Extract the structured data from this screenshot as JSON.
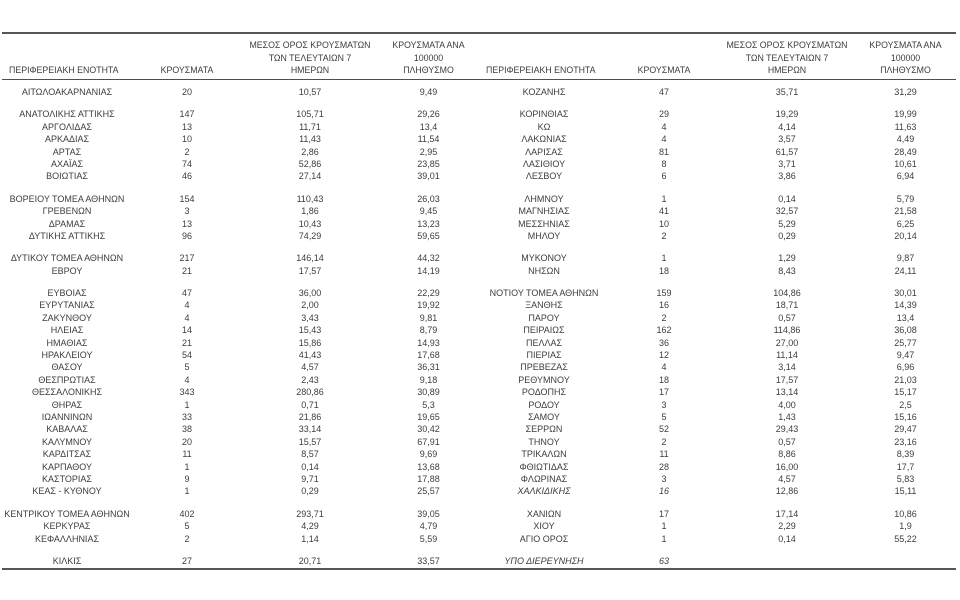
{
  "colors": {
    "text": "#3d3d3d",
    "rule": "#565656",
    "background": "#ffffff"
  },
  "header": {
    "col_region": "ΠΕΡΙΦΕΡΕΙΑΚΗ ΕΝΟΤΗΤΑ",
    "col_cases": "ΚΡΟΥΣΜΑΤΑ",
    "col_avg7_line1": "ΜΕΣΟΣ ΟΡΟΣ ΚΡΟΥΣΜΑΤΩΝ",
    "col_avg7_line2": "ΤΩΝ ΤΕΛΕΥΤΑΙΩΝ 7",
    "col_avg7_line3": "ΗΜΕΡΩΝ",
    "col_per100k_line1": "ΚΡΟΥΣΜΑΤΑ ΑΝΑ 100000",
    "col_per100k_line2": "ΠΛΗΘΥΣΜΟ"
  },
  "left_table": {
    "groups": [
      [
        {
          "region": "ΑΙΤΩΛΟΑΚΑΡΝΑΝΙΑΣ",
          "cases": "20",
          "avg7": "10,57",
          "per100k": "9,49"
        }
      ],
      [
        {
          "region": "ΑΝΑΤΟΛΙΚΗΣ ΑΤΤΙΚΗΣ",
          "cases": "147",
          "avg7": "105,71",
          "per100k": "29,26"
        },
        {
          "region": "ΑΡΓΟΛΙΔΑΣ",
          "cases": "13",
          "avg7": "11,71",
          "per100k": "13,4"
        },
        {
          "region": "ΑΡΚΑΔΙΑΣ",
          "cases": "10",
          "avg7": "11,43",
          "per100k": "11,54"
        },
        {
          "region": "ΑΡΤΑΣ",
          "cases": "2",
          "avg7": "2,86",
          "per100k": "2,95"
        },
        {
          "region": "ΑΧΑΪΑΣ",
          "cases": "74",
          "avg7": "52,86",
          "per100k": "23,85"
        },
        {
          "region": "ΒΟΙΩΤΙΑΣ",
          "cases": "46",
          "avg7": "27,14",
          "per100k": "39,01"
        }
      ],
      [
        {
          "region": "ΒΟΡΕΙΟΥ ΤΟΜΕΑ ΑΘΗΝΩΝ",
          "cases": "154",
          "avg7": "110,43",
          "per100k": "26,03"
        },
        {
          "region": "ΓΡΕΒΕΝΩΝ",
          "cases": "3",
          "avg7": "1,86",
          "per100k": "9,45"
        },
        {
          "region": "ΔΡΑΜΑΣ",
          "cases": "13",
          "avg7": "10,43",
          "per100k": "13,23"
        },
        {
          "region": "ΔΥΤΙΚΗΣ ΑΤΤΙΚΗΣ",
          "cases": "96",
          "avg7": "74,29",
          "per100k": "59,65"
        }
      ],
      [
        {
          "region": "ΔΥΤΙΚΟΥ ΤΟΜΕΑ ΑΘΗΝΩΝ",
          "cases": "217",
          "avg7": "146,14",
          "per100k": "44,32"
        },
        {
          "region": "ΕΒΡΟΥ",
          "cases": "21",
          "avg7": "17,57",
          "per100k": "14,19"
        }
      ],
      [
        {
          "region": "ΕΥΒΟΙΑΣ",
          "cases": "47",
          "avg7": "36,00",
          "per100k": "22,29"
        },
        {
          "region": "ΕΥΡΥΤΑΝΙΑΣ",
          "cases": "4",
          "avg7": "2,00",
          "per100k": "19,92"
        },
        {
          "region": "ΖΑΚΥΝΘΟΥ",
          "cases": "4",
          "avg7": "3,43",
          "per100k": "9,81"
        },
        {
          "region": "ΗΛΕΙΑΣ",
          "cases": "14",
          "avg7": "15,43",
          "per100k": "8,79"
        },
        {
          "region": "ΗΜΑΘΙΑΣ",
          "cases": "21",
          "avg7": "15,86",
          "per100k": "14,93"
        },
        {
          "region": "ΗΡΑΚΛΕΙΟΥ",
          "cases": "54",
          "avg7": "41,43",
          "per100k": "17,68"
        },
        {
          "region": "ΘΑΣΟΥ",
          "cases": "5",
          "avg7": "4,57",
          "per100k": "36,31"
        },
        {
          "region": "ΘΕΣΠΡΩΤΙΑΣ",
          "cases": "4",
          "avg7": "2,43",
          "per100k": "9,18"
        },
        {
          "region": "ΘΕΣΣΑΛΟΝΙΚΗΣ",
          "cases": "343",
          "avg7": "280,86",
          "per100k": "30,89"
        },
        {
          "region": "ΘΗΡΑΣ",
          "cases": "1",
          "avg7": "0,71",
          "per100k": "5,3"
        },
        {
          "region": "ΙΩΑΝΝΙΝΩΝ",
          "cases": "33",
          "avg7": "21,86",
          "per100k": "19,65"
        },
        {
          "region": "ΚΑΒΑΛΑΣ",
          "cases": "38",
          "avg7": "33,14",
          "per100k": "30,42"
        },
        {
          "region": "ΚΑΛΥΜΝΟΥ",
          "cases": "20",
          "avg7": "15,57",
          "per100k": "67,91"
        },
        {
          "region": "ΚΑΡΔΙΤΣΑΣ",
          "cases": "11",
          "avg7": "8,57",
          "per100k": "9,69"
        },
        {
          "region": "ΚΑΡΠΑΘΟΥ",
          "cases": "1",
          "avg7": "0,14",
          "per100k": "13,68"
        },
        {
          "region": "ΚΑΣΤΟΡΙΑΣ",
          "cases": "9",
          "avg7": "9,71",
          "per100k": "17,88"
        },
        {
          "region": "ΚΕΑΣ - ΚΥΘΝΟΥ",
          "cases": "1",
          "avg7": "0,29",
          "per100k": "25,57"
        }
      ],
      [
        {
          "region": "ΚΕΝΤΡΙΚΟΥ ΤΟΜΕΑ ΑΘΗΝΩΝ",
          "cases": "402",
          "avg7": "293,71",
          "per100k": "39,05"
        },
        {
          "region": "ΚΕΡΚΥΡΑΣ",
          "cases": "5",
          "avg7": "4,29",
          "per100k": "4,79"
        },
        {
          "region": "ΚΕΦΑΛΛΗΝΙΑΣ",
          "cases": "2",
          "avg7": "1,14",
          "per100k": "5,59"
        }
      ],
      [
        {
          "region": "ΚΙΛΚΙΣ",
          "cases": "27",
          "avg7": "20,71",
          "per100k": "33,57"
        }
      ]
    ]
  },
  "right_table": {
    "groups": [
      [
        {
          "region": "ΚΟΖΑΝΗΣ",
          "cases": "47",
          "avg7": "35,71",
          "per100k": "31,29"
        }
      ],
      [
        {
          "region": "ΚΟΡΙΝΘΙΑΣ",
          "cases": "29",
          "avg7": "19,29",
          "per100k": "19,99"
        },
        {
          "region": "ΚΩ",
          "cases": "4",
          "avg7": "4,14",
          "per100k": "11,63"
        },
        {
          "region": "ΛΑΚΩΝΙΑΣ",
          "cases": "4",
          "avg7": "3,57",
          "per100k": "4,49"
        },
        {
          "region": "ΛΑΡΙΣΑΣ",
          "cases": "81",
          "avg7": "61,57",
          "per100k": "28,49"
        },
        {
          "region": "ΛΑΣΙΘΙΟΥ",
          "cases": "8",
          "avg7": "3,71",
          "per100k": "10,61"
        },
        {
          "region": "ΛΕΣΒΟΥ",
          "cases": "6",
          "avg7": "3,86",
          "per100k": "6,94"
        }
      ],
      [
        {
          "region": "ΛΗΜΝΟΥ",
          "cases": "1",
          "avg7": "0,14",
          "per100k": "5,79"
        },
        {
          "region": "ΜΑΓΝΗΣΙΑΣ",
          "cases": "41",
          "avg7": "32,57",
          "per100k": "21,58"
        },
        {
          "region": "ΜΕΣΣΗΝΙΑΣ",
          "cases": "10",
          "avg7": "5,29",
          "per100k": "6,25"
        },
        {
          "region": "ΜΗΛΟΥ",
          "cases": "2",
          "avg7": "0,29",
          "per100k": "20,14"
        }
      ],
      [
        {
          "region": "ΜΥΚΟΝΟΥ",
          "cases": "1",
          "avg7": "1,29",
          "per100k": "9,87"
        },
        {
          "region": "ΝΗΣΩΝ",
          "cases": "18",
          "avg7": "8,43",
          "per100k": "24,11"
        }
      ],
      [
        {
          "region": "ΝΟΤΙΟΥ ΤΟΜΕΑ ΑΘΗΝΩΝ",
          "cases": "159",
          "avg7": "104,86",
          "per100k": "30,01"
        },
        {
          "region": "ΞΑΝΘΗΣ",
          "cases": "16",
          "avg7": "18,71",
          "per100k": "14,39"
        },
        {
          "region": "ΠΑΡΟΥ",
          "cases": "2",
          "avg7": "0,57",
          "per100k": "13,4"
        },
        {
          "region": "ΠΕΙΡΑΙΩΣ",
          "cases": "162",
          "avg7": "114,86",
          "per100k": "36,08"
        },
        {
          "region": "ΠΕΛΛΑΣ",
          "cases": "36",
          "avg7": "27,00",
          "per100k": "25,77"
        },
        {
          "region": "ΠΙΕΡΙΑΣ",
          "cases": "12",
          "avg7": "11,14",
          "per100k": "9,47"
        },
        {
          "region": "ΠΡΕΒΕΖΑΣ",
          "cases": "4",
          "avg7": "3,14",
          "per100k": "6,96"
        },
        {
          "region": "ΡΕΘΥΜΝΟΥ",
          "cases": "18",
          "avg7": "17,57",
          "per100k": "21,03"
        },
        {
          "region": "ΡΟΔΟΠΗΣ",
          "cases": "17",
          "avg7": "13,14",
          "per100k": "15,17"
        },
        {
          "region": "ΡΟΔΟΥ",
          "cases": "3",
          "avg7": "4,00",
          "per100k": "2,5"
        },
        {
          "region": "ΣΑΜΟΥ",
          "cases": "5",
          "avg7": "1,43",
          "per100k": "15,16"
        },
        {
          "region": "ΣΕΡΡΩΝ",
          "cases": "52",
          "avg7": "29,43",
          "per100k": "29,47"
        },
        {
          "region": "ΤΗΝΟΥ",
          "cases": "2",
          "avg7": "0,57",
          "per100k": "23,16"
        },
        {
          "region": "ΤΡΙΚΑΛΩΝ",
          "cases": "11",
          "avg7": "8,86",
          "per100k": "8,39"
        },
        {
          "region": "ΦΘΙΩΤΙΔΑΣ",
          "cases": "28",
          "avg7": "16,00",
          "per100k": "17,7"
        },
        {
          "region": "ΦΛΩΡΙΝΑΣ",
          "cases": "3",
          "avg7": "4,57",
          "per100k": "5,83"
        },
        {
          "region": "ΧΑΛΚΙΔΙΚΗΣ",
          "cases": "16",
          "avg7": "12,86",
          "per100k": "15,11",
          "italic": true
        }
      ],
      [
        {
          "region": "ΧΑΝΙΩΝ",
          "cases": "17",
          "avg7": "17,14",
          "per100k": "10,86"
        },
        {
          "region": "ΧΙΟΥ",
          "cases": "1",
          "avg7": "2,29",
          "per100k": "1,9"
        },
        {
          "region": "ΑΓΙΟ ΟΡΟΣ",
          "cases": "1",
          "avg7": "0,14",
          "per100k": "55,22"
        }
      ],
      [
        {
          "region": "ΥΠΟ ΔΙΕΡΕΥΝΗΣΗ",
          "cases": "63",
          "avg7": "",
          "per100k": "",
          "italic": true
        }
      ]
    ]
  }
}
